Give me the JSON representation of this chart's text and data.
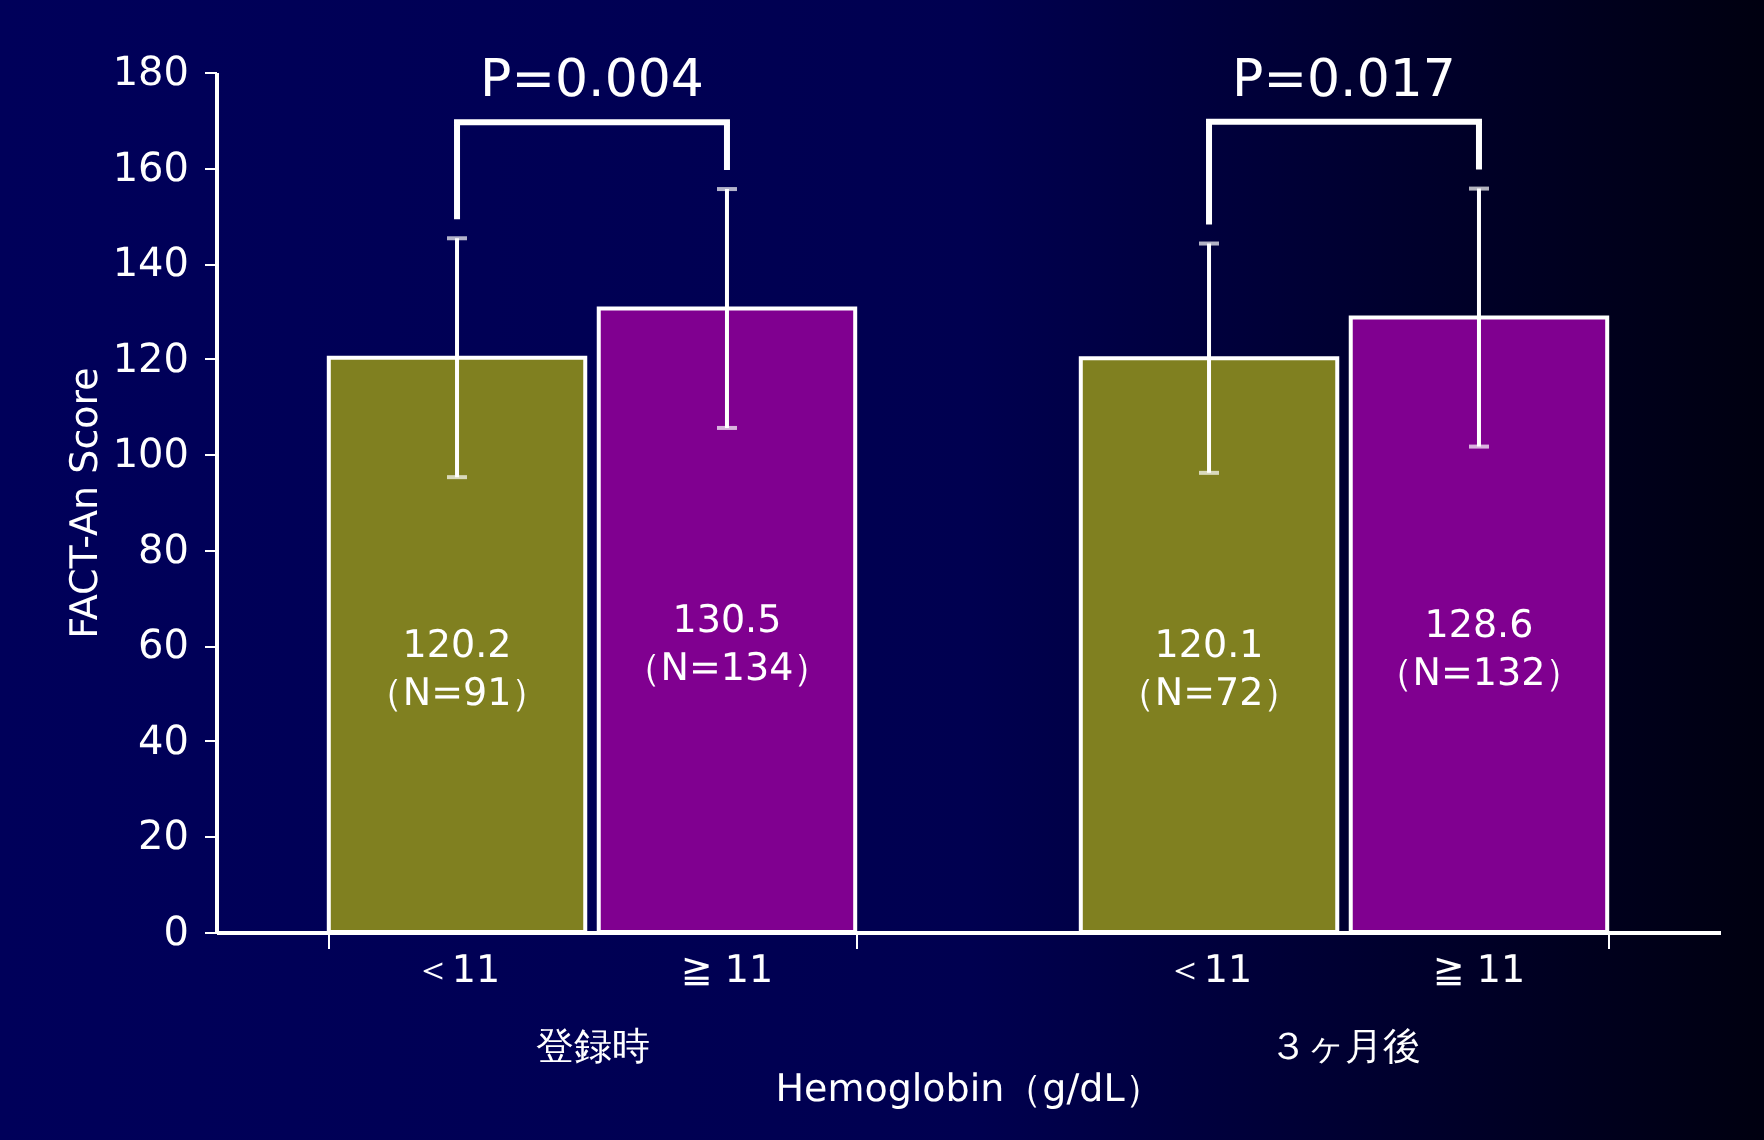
{
  "chart_data": {
    "type": "bar",
    "categories": [
      "登録時",
      "３ヶ月後"
    ],
    "series": [
      {
        "name": "＜11",
        "color": "#808020",
        "values": [
          120.2,
          120.1
        ],
        "errors": [
          25,
          24
        ],
        "value_labels": [
          "120.2\n（N=91）",
          "120.1\n（N=72）"
        ]
      },
      {
        "name": "≧ 11",
        "color": "#800090",
        "values": [
          130.5,
          128.6
        ],
        "errors": [
          25,
          27
        ],
        "value_labels": [
          "130.5\n（N=134）",
          "128.6\n（N=132）"
        ]
      }
    ],
    "ylabel": "FACT-An Score",
    "xlabel": "Hemoglobin（g/dL）",
    "ylim": [
      0,
      180
    ],
    "yticks": [
      0,
      20,
      40,
      60,
      80,
      100,
      120,
      140,
      160,
      180
    ],
    "annotations": [
      "P=0.004",
      "P=0.017"
    ],
    "grid": false,
    "legend": false
  }
}
